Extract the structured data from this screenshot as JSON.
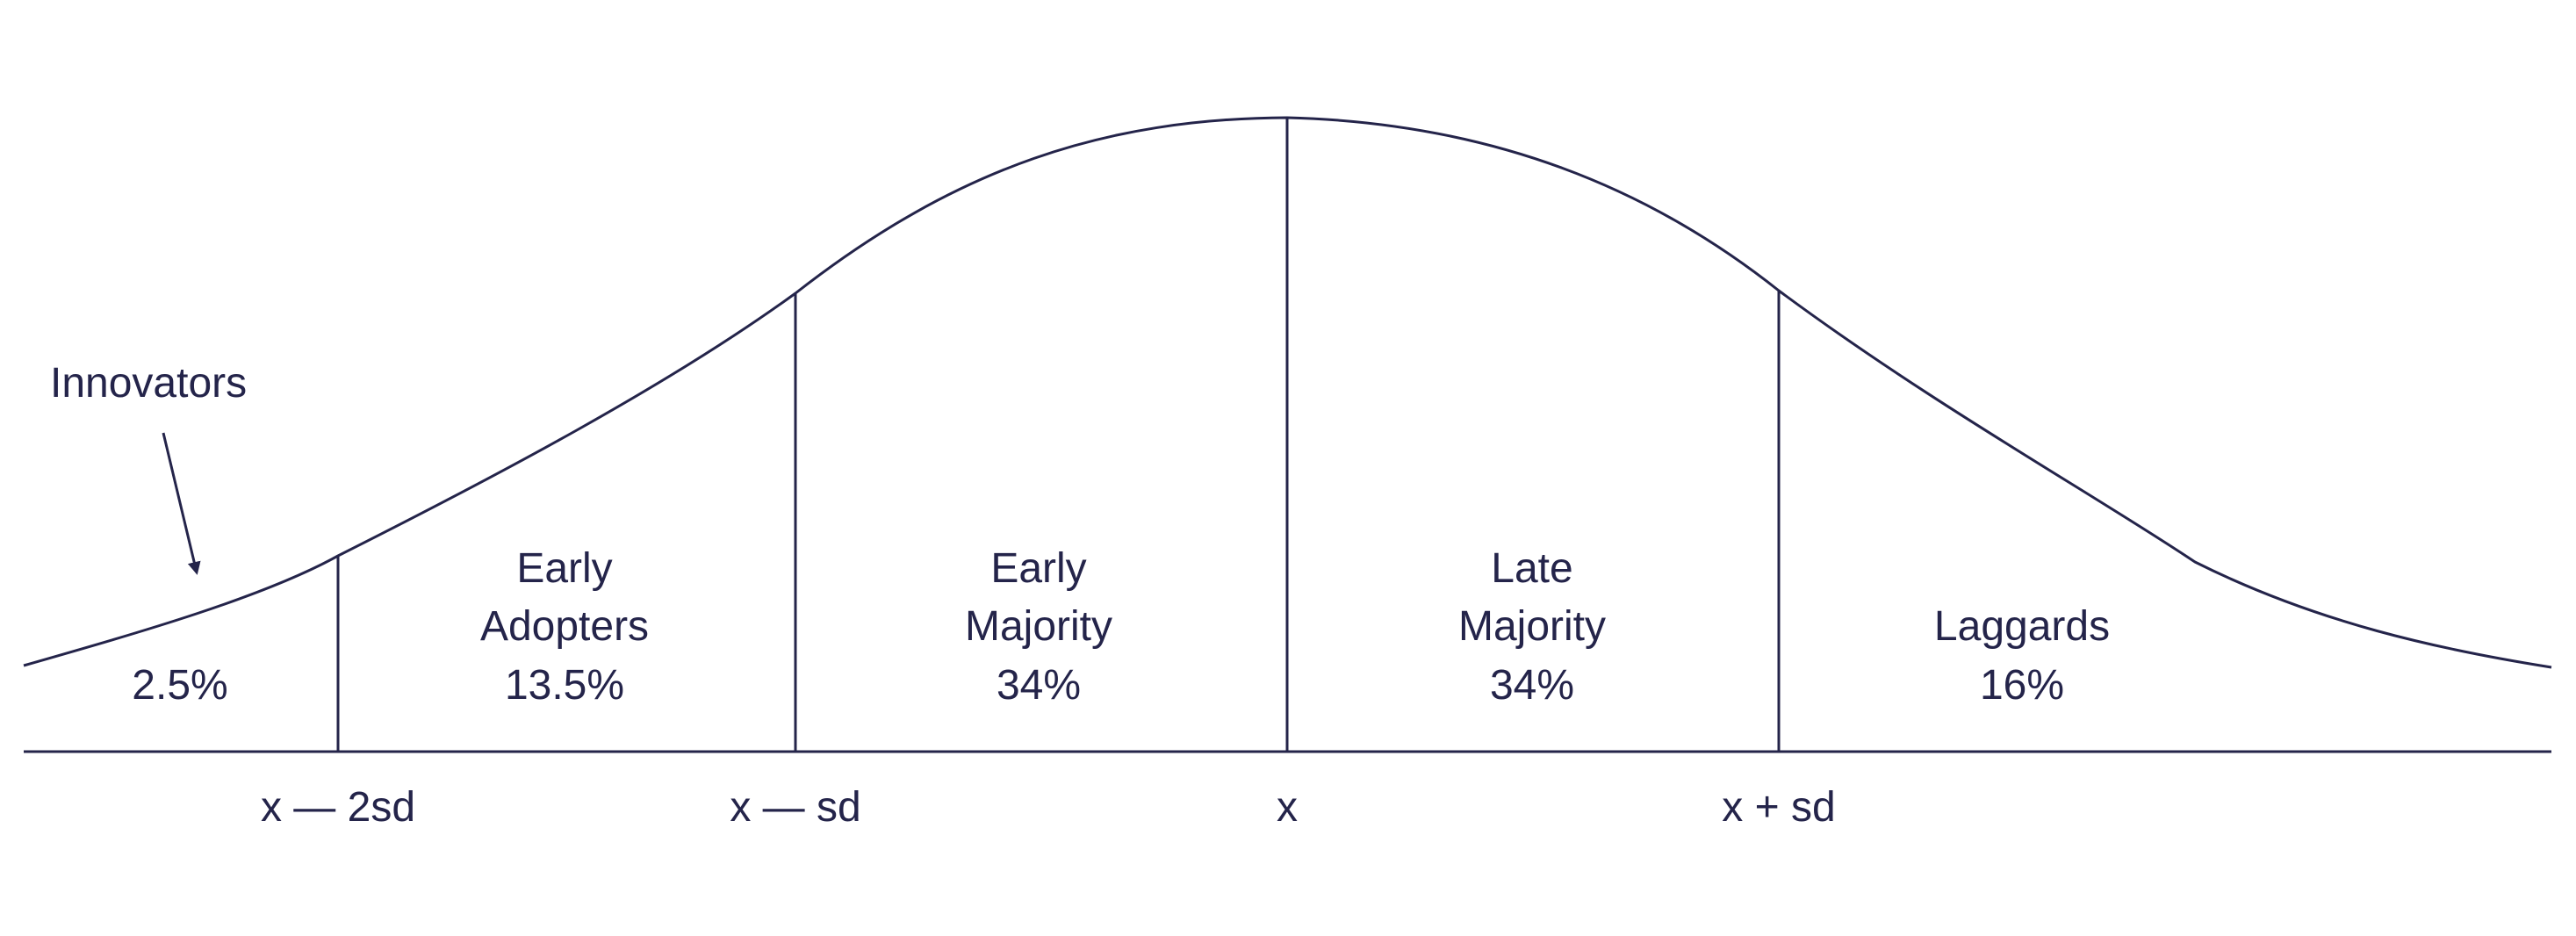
{
  "colors": {
    "ink": "#24244a",
    "background": "#ffffff"
  },
  "chart_data": {
    "type": "area",
    "title": "",
    "xlabel": "",
    "ylabel": "",
    "annotation": {
      "text": "Innovators",
      "points_to": "innovators segment"
    },
    "boundaries": [
      {
        "label": "x — 2sd",
        "value": -2
      },
      {
        "label": "x — sd",
        "value": -1
      },
      {
        "label": "x",
        "value": 0
      },
      {
        "label": "x + sd",
        "value": 1
      }
    ],
    "segments": [
      {
        "name_lines": [],
        "percent": "2.5%"
      },
      {
        "name_lines": [
          "Early",
          "Adopters"
        ],
        "percent": "13.5%"
      },
      {
        "name_lines": [
          "Early",
          "Majority"
        ],
        "percent": "34%"
      },
      {
        "name_lines": [
          "Late",
          "Majority"
        ],
        "percent": "34%"
      },
      {
        "name_lines": [
          "Laggards"
        ],
        "percent": "16%"
      }
    ]
  }
}
